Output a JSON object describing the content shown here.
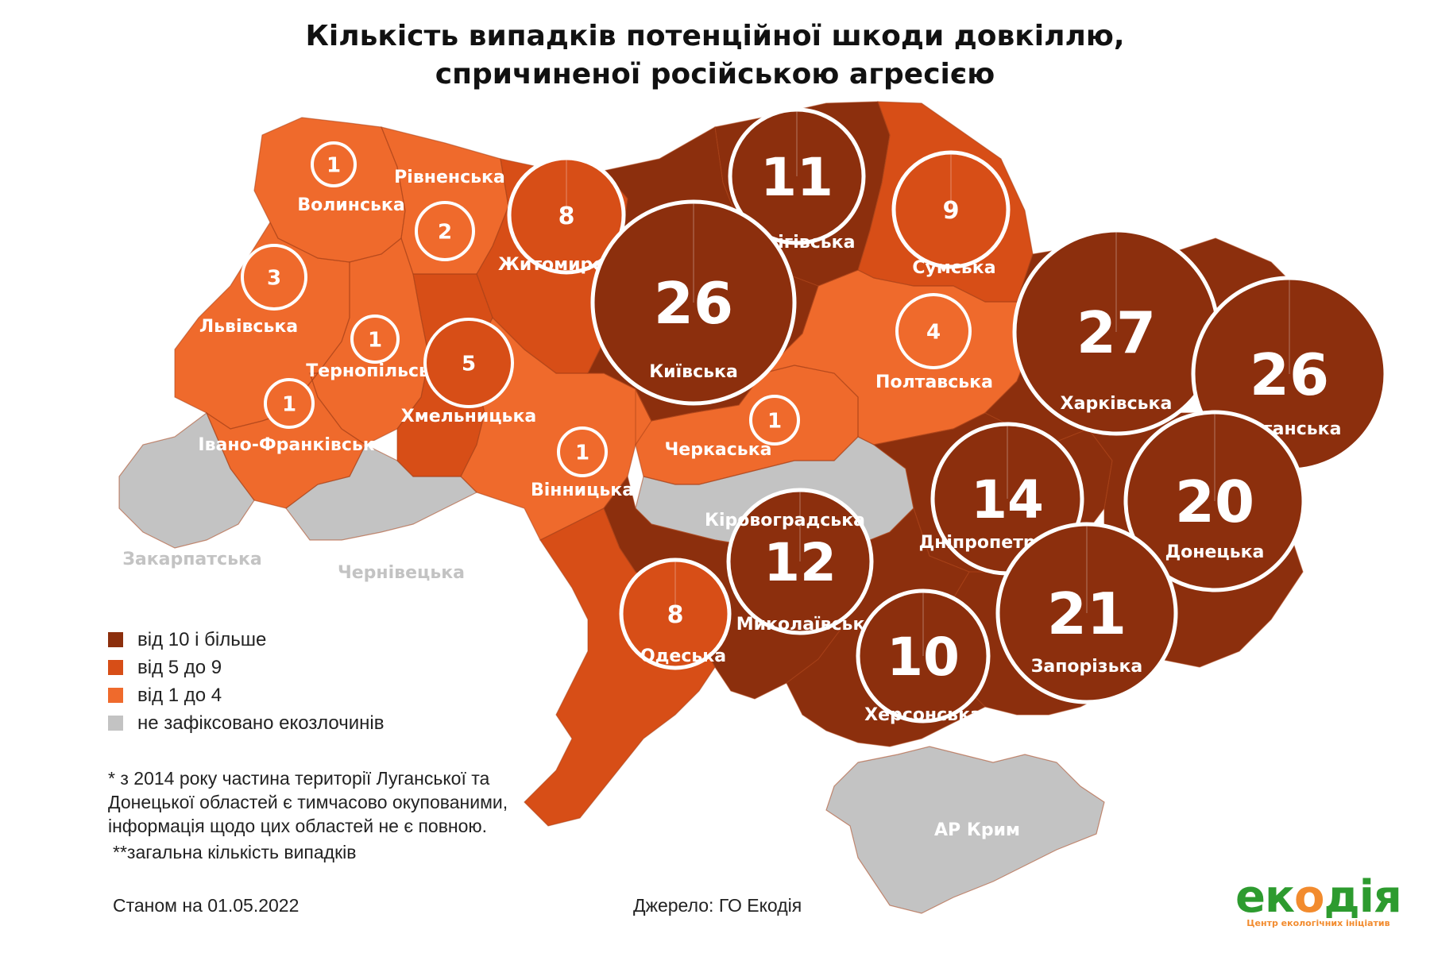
{
  "title": {
    "line1": "Кількість випадків потенційної шкоди довкіллю,",
    "line2": "спричиненої російською агресією"
  },
  "colors": {
    "high": "#8c2f0d",
    "mid": "#d74e17",
    "low": "#ef6a2c",
    "none": "#c3c3c3"
  },
  "regions": [
    {
      "name": "Волинська",
      "count": 1,
      "category": "low"
    },
    {
      "name": "Рівненська",
      "count": 2,
      "category": "low"
    },
    {
      "name": "Житомирська",
      "count": 8,
      "category": "mid"
    },
    {
      "name": "Чернігівська",
      "count": 11,
      "category": "high"
    },
    {
      "name": "Сумська",
      "count": 9,
      "category": "mid"
    },
    {
      "name": "Львівська",
      "count": 3,
      "category": "low"
    },
    {
      "name": "Київська",
      "count": 26,
      "category": "high"
    },
    {
      "name": "Тернопільська",
      "count": 1,
      "category": "low"
    },
    {
      "name": "Хмельницька",
      "count": 5,
      "category": "mid"
    },
    {
      "name": "Полтавська",
      "count": 4,
      "category": "low"
    },
    {
      "name": "Харківська",
      "count": 27,
      "category": "high"
    },
    {
      "name": "Луганська",
      "count": 26,
      "category": "high"
    },
    {
      "name": "Івано-Франківська",
      "count": 1,
      "category": "low"
    },
    {
      "name": "Вінницька",
      "count": 1,
      "category": "low"
    },
    {
      "name": "Черкаська",
      "count": 1,
      "category": "low"
    },
    {
      "name": "Дніпропетровська",
      "count": 14,
      "category": "high"
    },
    {
      "name": "Донецька",
      "count": 20,
      "category": "high"
    },
    {
      "name": "Миколаївська",
      "count": 12,
      "category": "high"
    },
    {
      "name": "Одеська",
      "count": 8,
      "category": "mid"
    },
    {
      "name": "Запорізька",
      "count": 21,
      "category": "high"
    },
    {
      "name": "Херсонська",
      "count": 10,
      "category": "high"
    },
    {
      "name": "Кіровоградська",
      "count": null,
      "category": "none"
    },
    {
      "name": "Закарпатська",
      "count": null,
      "category": "none"
    },
    {
      "name": "Чернівецька",
      "count": null,
      "category": "none"
    },
    {
      "name": "АР Крим",
      "count": null,
      "category": "none"
    }
  ],
  "legend": [
    {
      "label": "від 10 і більше",
      "category": "high"
    },
    {
      "label": "від 5 до 9",
      "category": "mid"
    },
    {
      "label": "від 1 до 4",
      "category": "low"
    },
    {
      "label": "не зафіксовано екозлочинів",
      "category": "none"
    }
  ],
  "notes": {
    "occupied": [
      "* з 2014 року частина території Луганської та",
      "Донецької областей є тимчасово окупованими,",
      "інформація щодо цих областей не є повною."
    ],
    "total": "**загальна кількість випадків"
  },
  "as_of": "Станом на 01.05.2022",
  "source": "Джерело: ГО Екодія",
  "logo": {
    "word_start": "ек",
    "word_o": "о",
    "word_end": "дія",
    "subtitle": "Центр екологічних ініціатив"
  }
}
